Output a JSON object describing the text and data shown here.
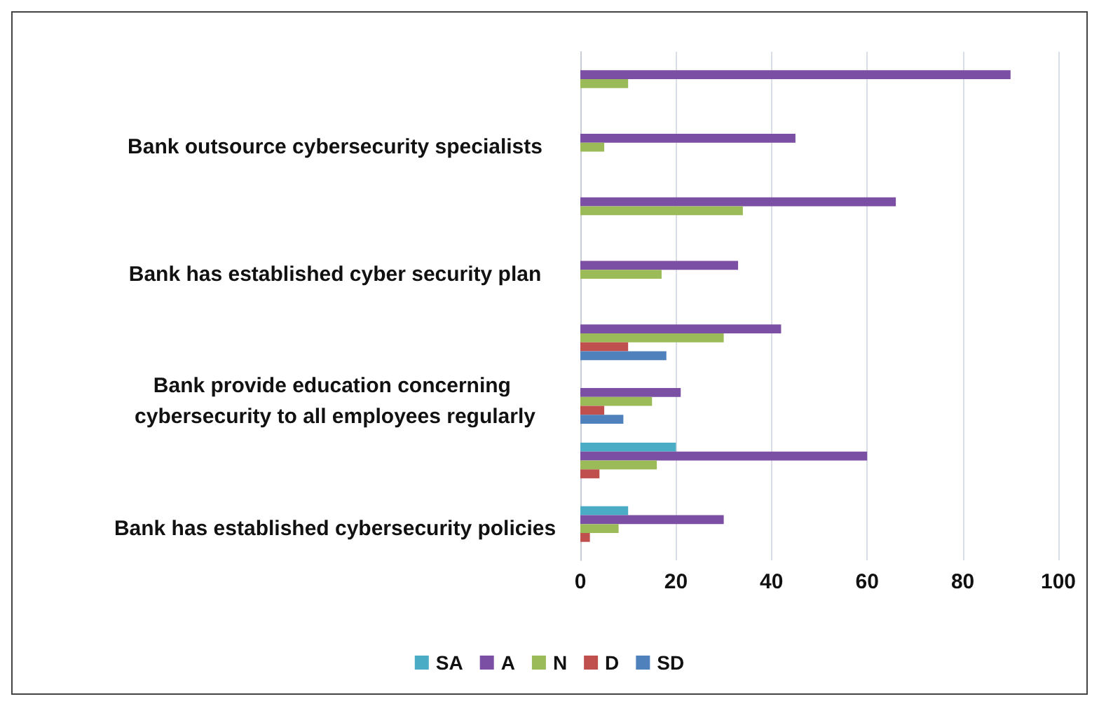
{
  "chart_data": {
    "type": "bar",
    "orientation": "horizontal",
    "categories": [
      null,
      "Bank outsource cybersecurity specialists",
      null,
      "Bank has established cyber security plan",
      null,
      "Bank provide education concerning cybersecurity to all employees regularly",
      null,
      "Bank has established cybersecurity policies"
    ],
    "series": [
      {
        "name": "SA",
        "color": "#4bacc6",
        "values": [
          null,
          null,
          null,
          null,
          null,
          null,
          20,
          10
        ]
      },
      {
        "name": "A",
        "color": "#7b4fa3",
        "values": [
          90,
          45,
          66,
          33,
          42,
          21,
          60,
          30
        ]
      },
      {
        "name": "N",
        "color": "#9bbb59",
        "values": [
          10,
          5,
          34,
          17,
          30,
          15,
          16,
          8
        ]
      },
      {
        "name": "D",
        "color": "#c0504d",
        "values": [
          null,
          null,
          null,
          null,
          10,
          5,
          4,
          2
        ]
      },
      {
        "name": "SD",
        "color": "#4f81bd",
        "values": [
          null,
          null,
          null,
          null,
          18,
          9,
          null,
          null
        ]
      }
    ],
    "xlim": [
      0,
      100
    ],
    "xticks": [
      0,
      20,
      40,
      60,
      80,
      100
    ],
    "grid": "x",
    "legend": "bottom"
  }
}
